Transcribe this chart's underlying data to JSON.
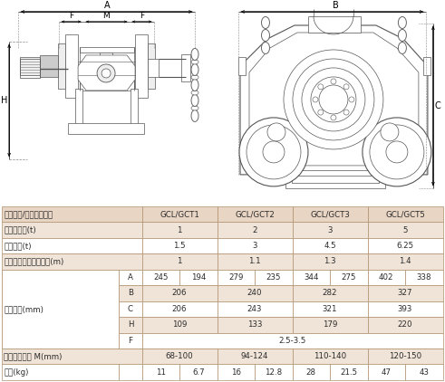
{
  "header_bg": "#e8d5c4",
  "alt_row_bg": "#f0e4d8",
  "white_bg": "#ffffff",
  "border_color": "#b0906e",
  "lc": "#555555",
  "table_rows": [
    {
      "label": "单轨行車/手推单轨行車",
      "sub": "",
      "type": "header",
      "vals": [
        "GCL/GCT1",
        "GCL/GCT2",
        "GCL/GCT3",
        "GCL/GCT5"
      ]
    },
    {
      "label": "額定載重量(t)",
      "sub": "",
      "type": "simple",
      "vals": [
        "1",
        "2",
        "3",
        "5"
      ],
      "bg": "alt"
    },
    {
      "label": "試驗載荷(t)",
      "sub": "",
      "type": "simple",
      "vals": [
        "1.5",
        "3",
        "4.5",
        "6.25"
      ],
      "bg": "white"
    },
    {
      "label": "能通過的最小彎道半徑(m)",
      "sub": "",
      "type": "simple",
      "vals": [
        "1",
        "1.1",
        "1.3",
        "1.4"
      ],
      "bg": "alt"
    },
    {
      "label": "主要尺寸(mm)",
      "sub": "A",
      "type": "dual",
      "vals": [
        "245",
        "194",
        "279",
        "235",
        "344",
        "275",
        "402",
        "338"
      ],
      "bg": "white"
    },
    {
      "label": "",
      "sub": "B",
      "type": "simple",
      "vals": [
        "206",
        "240",
        "282",
        "327"
      ],
      "bg": "alt"
    },
    {
      "label": "",
      "sub": "C",
      "type": "simple",
      "vals": [
        "206",
        "243",
        "321",
        "393"
      ],
      "bg": "white"
    },
    {
      "label": "",
      "sub": "H",
      "type": "simple",
      "vals": [
        "109",
        "133",
        "179",
        "220"
      ],
      "bg": "alt"
    },
    {
      "label": "",
      "sub": "F",
      "type": "fullspan",
      "vals": [
        "2.5-3.5"
      ],
      "bg": "white"
    },
    {
      "label": "推薦用工字鉢 M(mm)",
      "sub": "",
      "type": "simple",
      "vals": [
        "68-100",
        "94-124",
        "110-140",
        "120-150"
      ],
      "bg": "alt"
    },
    {
      "label": "淨重(kg)",
      "sub": "",
      "type": "dual",
      "vals": [
        "11",
        "6.7",
        "16",
        "12.8",
        "28",
        "21.5",
        "47",
        "43"
      ],
      "bg": "white"
    }
  ]
}
